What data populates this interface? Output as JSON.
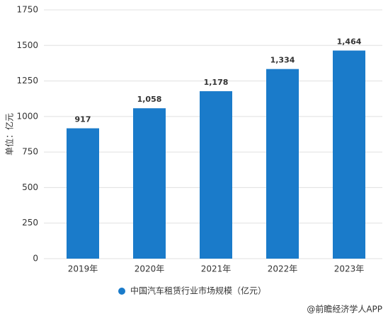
{
  "chart_data": {
    "type": "bar",
    "y_label": "单位：亿元",
    "categories": [
      "2019年",
      "2020年",
      "2021年",
      "2022年",
      "2023年"
    ],
    "series": [
      {
        "name": "中国汽车租赁行业市场规模（亿元）",
        "color": "#1a7bca",
        "values": [
          917,
          1058,
          1178,
          1334,
          1464
        ],
        "value_labels": [
          "917",
          "1,058",
          "1,178",
          "1,334",
          "1,464"
        ]
      }
    ],
    "ylim": [
      0,
      1750
    ],
    "yticks": [
      0,
      250,
      500,
      750,
      1000,
      1250,
      1500,
      1750
    ],
    "grid": true,
    "source": "@前瞻经济学人APP"
  }
}
